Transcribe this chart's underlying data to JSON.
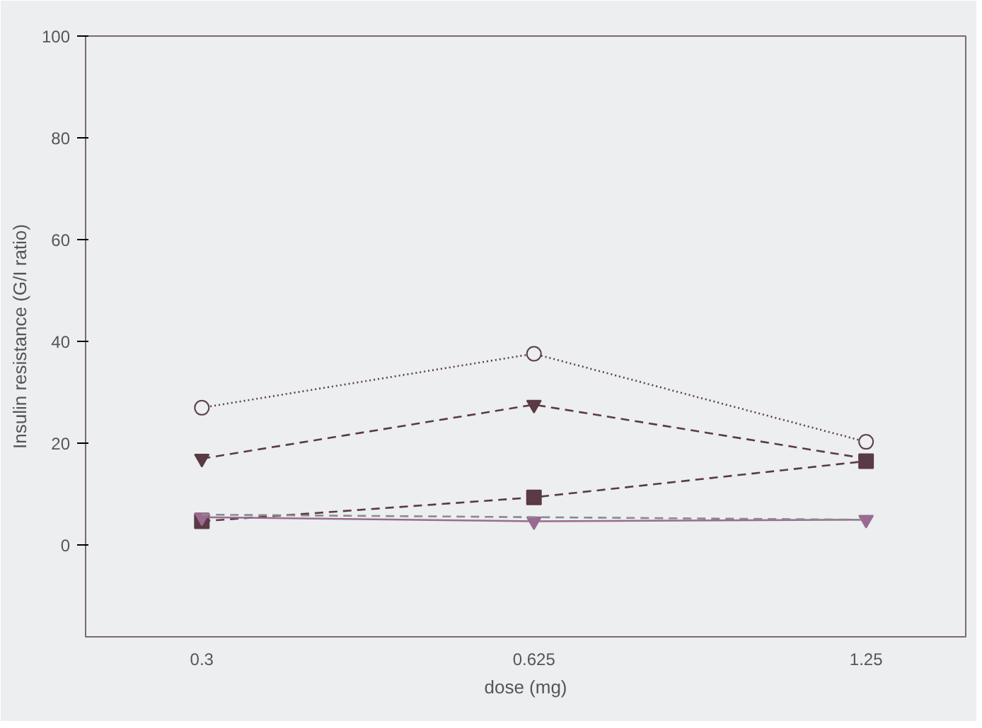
{
  "chart_data": {
    "type": "line",
    "xlabel": "dose (mg)",
    "ylabel": "Insulin resistance (G/I ratio)",
    "categories": [
      "0.3",
      "0.625",
      "1.25"
    ],
    "ylim": [
      -18,
      100
    ],
    "yticks": [
      0,
      20,
      40,
      60,
      80,
      100
    ],
    "grid": false,
    "series": [
      {
        "color": "#5a4048",
        "values": [
          27,
          37.6,
          20.3
        ],
        "marker": "circle",
        "line_style": "dotted"
      },
      {
        "color": "#5a3a44",
        "values": [
          17,
          27.6,
          17
        ],
        "marker": "triangle",
        "line_style": "dashed"
      },
      {
        "color": "#5a3a44",
        "values": [
          4.7,
          9.4,
          16.5
        ],
        "marker": "square",
        "line_style": "dashed"
      },
      {
        "color": "#9a6a90",
        "values": [
          5.5,
          4.7,
          5
        ],
        "marker": "triangle",
        "line_style": "solid"
      },
      {
        "color": "#8a8a8a",
        "values": [
          6,
          5.5,
          5
        ],
        "marker": "none",
        "line_style": "dashed"
      }
    ]
  }
}
